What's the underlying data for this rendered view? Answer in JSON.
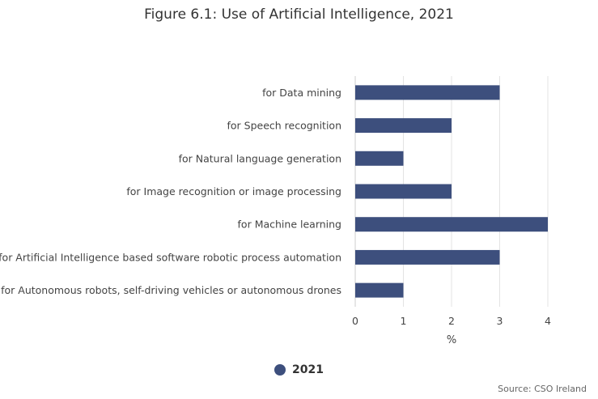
{
  "chart_data": {
    "type": "bar",
    "orientation": "horizontal",
    "title": "Figure 6.1: Use of Artificial Intelligence, 2021",
    "xlabel": "%",
    "ylabel": "",
    "categories": [
      "for Data mining",
      "for Speech recognition",
      "for Natural language generation",
      "for Image recognition or image processing",
      "for Machine learning",
      "for Artificial Intelligence based software robotic process automation",
      "for Autonomous robots, self-driving vehicles or autonomous drones"
    ],
    "series": [
      {
        "name": "2021",
        "values": [
          3,
          2,
          1,
          2,
          4,
          3,
          1
        ],
        "color": "#3d4f7d"
      }
    ],
    "xlim": [
      0,
      4
    ],
    "xticks": [
      "0",
      "1",
      "2",
      "3",
      "4"
    ],
    "grid": "vertical",
    "legend_position": "bottom"
  },
  "source": "Source: CSO Ireland"
}
